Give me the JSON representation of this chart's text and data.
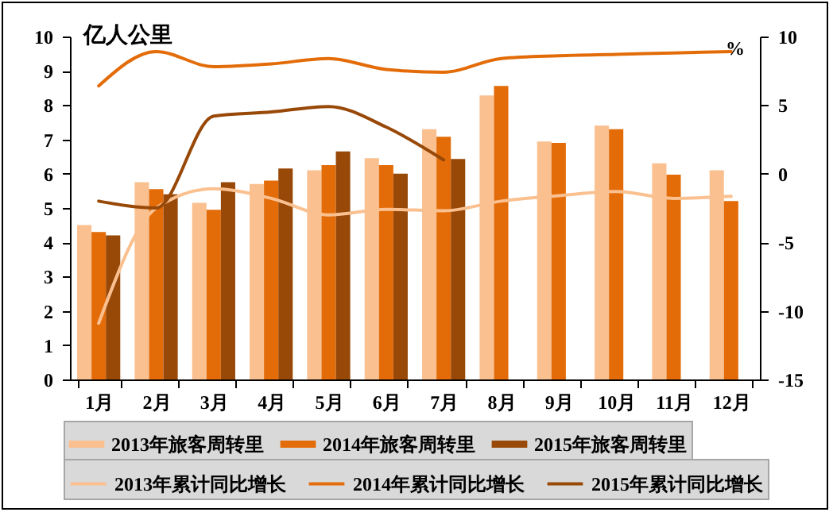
{
  "chart_data": {
    "type": "bar",
    "ylabel": "亿人公里",
    "y2label": "%",
    "categories": [
      "1月",
      "2月",
      "3月",
      "4月",
      "5月",
      "6月",
      "7月",
      "8月",
      "9月",
      "10月",
      "11月",
      "12月"
    ],
    "ylim": [
      0,
      10
    ],
    "yticks": [
      0,
      1,
      2,
      3,
      4,
      5,
      6,
      7,
      8,
      9,
      10
    ],
    "y2lim": [
      -15,
      10
    ],
    "y2ticks": [
      -15,
      -10,
      -5,
      0,
      5,
      10
    ],
    "legend": "bottom",
    "grid": false,
    "series": [
      {
        "name": "2013年旅客周转里",
        "color": "#fac090",
        "values": [
          4.5,
          5.75,
          5.15,
          5.7,
          6.1,
          6.45,
          7.3,
          8.28,
          6.94,
          7.4,
          6.3,
          6.1
        ]
      },
      {
        "name": "2014年旅客周转里",
        "color": "#e36c09",
        "values": [
          4.3,
          5.55,
          4.95,
          5.8,
          6.25,
          6.25,
          7.08,
          8.56,
          6.9,
          7.3,
          5.97,
          5.2
        ]
      },
      {
        "name": "2015年旅客周转里",
        "color": "#984807",
        "values": [
          4.2,
          5.4,
          5.75,
          6.15,
          6.65,
          6.0,
          6.43,
          null,
          null,
          null,
          null,
          null
        ]
      },
      {
        "name": "2013年累计同比增长",
        "type": "line",
        "axis": "y2",
        "color": "#fac090",
        "values": [
          -10.9,
          -2.5,
          -1.1,
          -1.8,
          -3.0,
          -2.6,
          -2.7,
          -2.0,
          -1.6,
          -1.3,
          -1.8,
          -1.65
        ]
      },
      {
        "name": "2014年累计同比增长",
        "type": "line",
        "axis": "y2",
        "color": "#e36c09",
        "values": [
          6.4,
          8.9,
          7.8,
          8.0,
          8.4,
          7.6,
          7.4,
          8.4,
          8.6,
          8.7,
          8.8,
          8.9
        ]
      },
      {
        "name": "2015年累计同比增长",
        "type": "line",
        "axis": "y2",
        "color": "#984807",
        "values": [
          -2.0,
          -2.5,
          4.2,
          4.5,
          4.9,
          3.4,
          1.0,
          null,
          null,
          null,
          null,
          null
        ]
      }
    ]
  }
}
